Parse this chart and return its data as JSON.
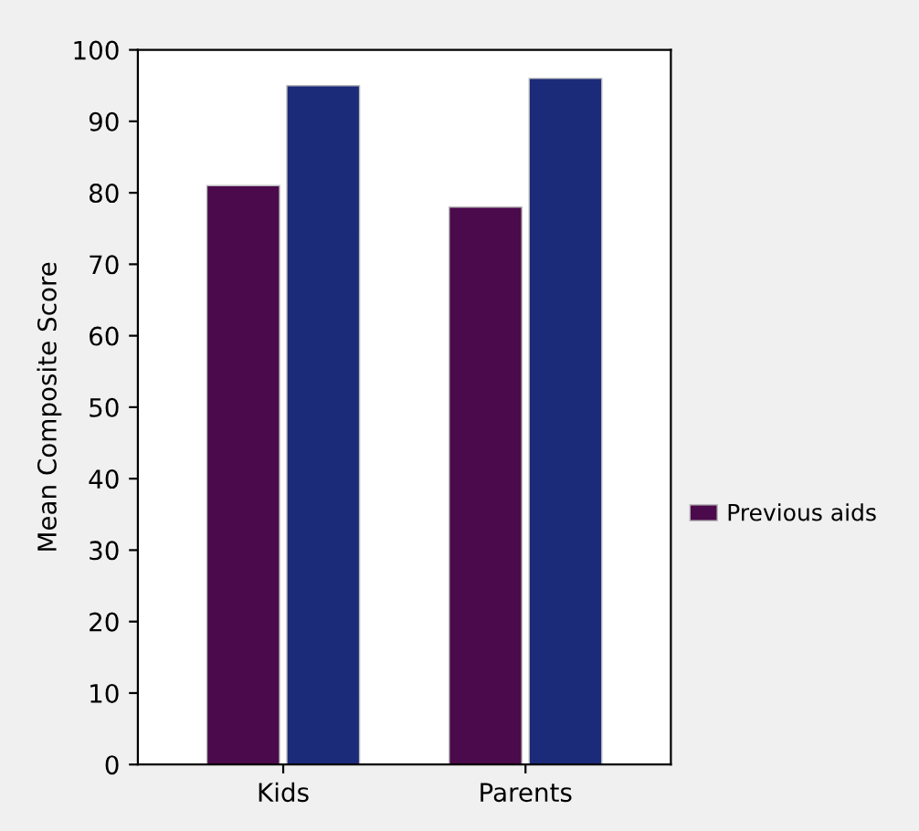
{
  "chart_data": {
    "type": "bar",
    "ylabel": "Mean Composite Score",
    "categories": [
      "Kids",
      "Parents"
    ],
    "series": [
      {
        "color": "#4b0a4b",
        "values": [
          81,
          78
        ],
        "name": "Previous aids"
      },
      {
        "color": "#1c2a7a",
        "values": [
          95,
          96
        ]
      }
    ],
    "ylim": [
      0,
      100
    ],
    "yticks": [
      0,
      10,
      20,
      30,
      40,
      50,
      60,
      70,
      80,
      90,
      100
    ],
    "legend": "right",
    "grid": false
  }
}
